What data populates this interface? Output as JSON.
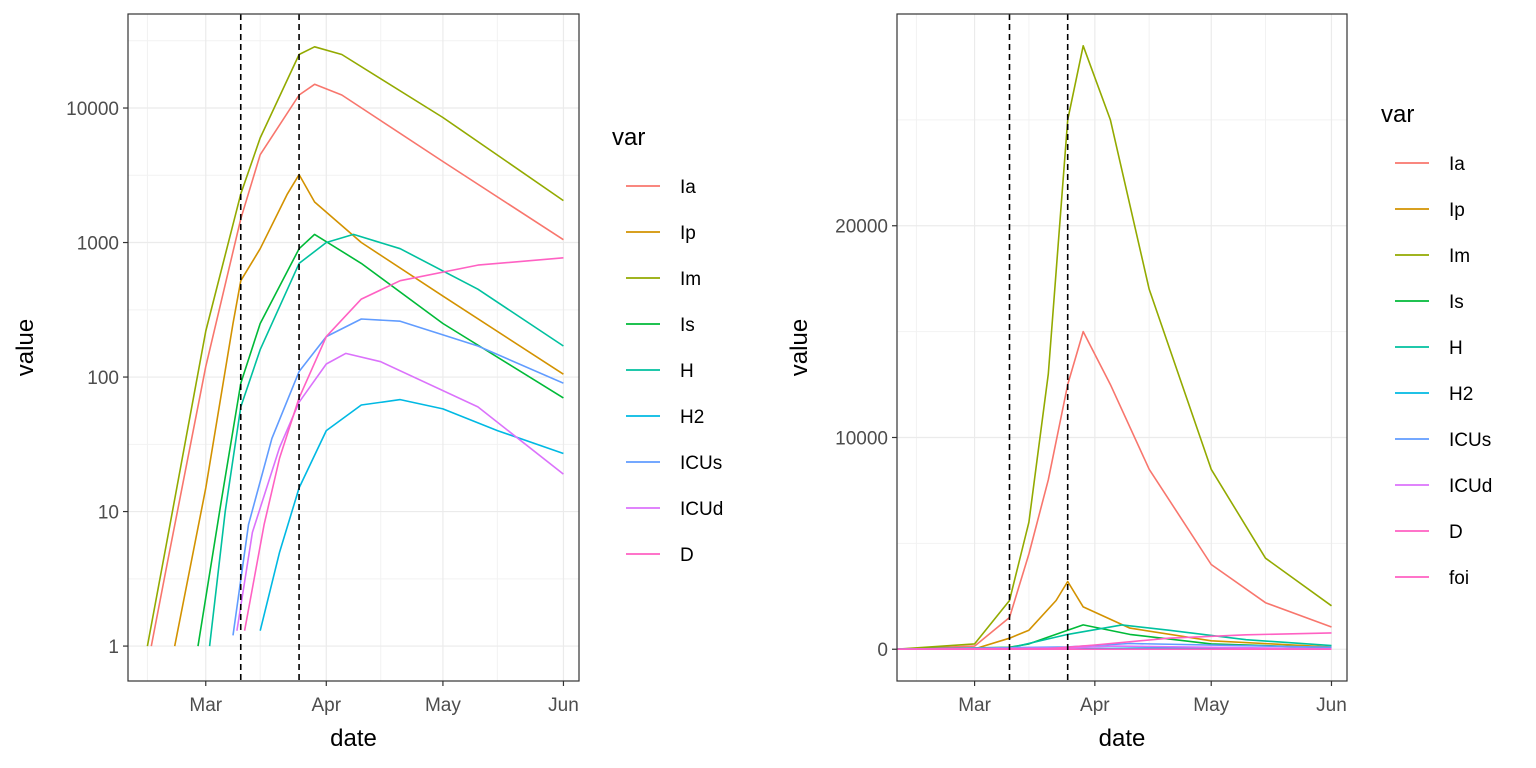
{
  "chart_data": [
    {
      "type": "line",
      "scale": "log10",
      "xlabel": "date",
      "ylabel": "value",
      "x_ticks": [
        "Mar",
        "Apr",
        "May",
        "Jun"
      ],
      "y_ticks": [
        "1",
        "10",
        "100",
        "1000",
        "10000"
      ],
      "x_range": [
        "2020-02-10",
        "2020-06-05"
      ],
      "y_range": [
        0.55,
        50000
      ],
      "grid": true,
      "vlines": [
        "2020-03-10",
        "2020-03-25"
      ],
      "legend": {
        "title": "var",
        "position": "right",
        "entries": [
          "Ia",
          "Ip",
          "Im",
          "Is",
          "H",
          "H2",
          "ICUs",
          "ICUd",
          "D"
        ]
      },
      "series": [
        {
          "name": "Ia",
          "color": "#F8766D",
          "points": [
            [
              "2020-02-16",
              1
            ],
            [
              "2020-02-20",
              4
            ],
            [
              "2020-03-01",
              120
            ],
            [
              "2020-03-10",
              1500
            ],
            [
              "2020-03-15",
              4500
            ],
            [
              "2020-03-25",
              12500
            ],
            [
              "2020-03-29",
              15000
            ],
            [
              "2020-04-05",
              12500
            ],
            [
              "2020-05-01",
              4000
            ],
            [
              "2020-06-01",
              1050
            ]
          ]
        },
        {
          "name": "Ip",
          "color": "#D39200",
          "points": [
            [
              "2020-02-22",
              1
            ],
            [
              "2020-03-01",
              15
            ],
            [
              "2020-03-08",
              250
            ],
            [
              "2020-03-10",
              520
            ],
            [
              "2020-03-15",
              900
            ],
            [
              "2020-03-22",
              2300
            ],
            [
              "2020-03-25",
              3200
            ],
            [
              "2020-03-29",
              2000
            ],
            [
              "2020-04-10",
              1000
            ],
            [
              "2020-05-01",
              400
            ],
            [
              "2020-06-01",
              105
            ]
          ]
        },
        {
          "name": "Im",
          "color": "#93AA00",
          "points": [
            [
              "2020-02-15",
              1
            ],
            [
              "2020-02-20",
              6
            ],
            [
              "2020-03-01",
              220
            ],
            [
              "2020-03-10",
              2300
            ],
            [
              "2020-03-15",
              6000
            ],
            [
              "2020-03-25",
              25000
            ],
            [
              "2020-03-29",
              28500
            ],
            [
              "2020-04-05",
              25000
            ],
            [
              "2020-05-01",
              8500
            ],
            [
              "2020-06-01",
              2050
            ]
          ]
        },
        {
          "name": "Is",
          "color": "#00BA38",
          "points": [
            [
              "2020-02-28",
              1
            ],
            [
              "2020-03-05",
              12
            ],
            [
              "2020-03-10",
              90
            ],
            [
              "2020-03-15",
              250
            ],
            [
              "2020-03-25",
              900
            ],
            [
              "2020-03-29",
              1150
            ],
            [
              "2020-04-10",
              700
            ],
            [
              "2020-05-01",
              250
            ],
            [
              "2020-06-01",
              70
            ]
          ]
        },
        {
          "name": "H",
          "color": "#00C19F",
          "points": [
            [
              "2020-03-02",
              1
            ],
            [
              "2020-03-06",
              10
            ],
            [
              "2020-03-10",
              60
            ],
            [
              "2020-03-15",
              160
            ],
            [
              "2020-03-25",
              700
            ],
            [
              "2020-04-01",
              1000
            ],
            [
              "2020-04-08",
              1150
            ],
            [
              "2020-04-20",
              900
            ],
            [
              "2020-05-10",
              450
            ],
            [
              "2020-06-01",
              170
            ]
          ]
        },
        {
          "name": "H2",
          "color": "#00B9E3",
          "points": [
            [
              "2020-03-15",
              1.3
            ],
            [
              "2020-03-20",
              5
            ],
            [
              "2020-03-25",
              15
            ],
            [
              "2020-04-01",
              40
            ],
            [
              "2020-04-10",
              62
            ],
            [
              "2020-04-20",
              68
            ],
            [
              "2020-05-01",
              58
            ],
            [
              "2020-05-15",
              40
            ],
            [
              "2020-06-01",
              27
            ]
          ]
        },
        {
          "name": "ICUs",
          "color": "#619CFF",
          "points": [
            [
              "2020-03-08",
              1.2
            ],
            [
              "2020-03-12",
              8
            ],
            [
              "2020-03-18",
              35
            ],
            [
              "2020-03-25",
              110
            ],
            [
              "2020-04-01",
              200
            ],
            [
              "2020-04-10",
              270
            ],
            [
              "2020-04-20",
              260
            ],
            [
              "2020-05-10",
              170
            ],
            [
              "2020-06-01",
              90
            ]
          ]
        },
        {
          "name": "ICUd",
          "color": "#DB72FB",
          "points": [
            [
              "2020-03-09",
              1.3
            ],
            [
              "2020-03-13",
              7
            ],
            [
              "2020-03-20",
              30
            ],
            [
              "2020-03-25",
              65
            ],
            [
              "2020-04-01",
              125
            ],
            [
              "2020-04-06",
              150
            ],
            [
              "2020-04-15",
              130
            ],
            [
              "2020-05-10",
              60
            ],
            [
              "2020-06-01",
              19
            ]
          ]
        },
        {
          "name": "D",
          "color": "#FF61C3",
          "points": [
            [
              "2020-03-11",
              1.3
            ],
            [
              "2020-03-16",
              8
            ],
            [
              "2020-03-20",
              25
            ],
            [
              "2020-03-25",
              70
            ],
            [
              "2020-04-01",
              200
            ],
            [
              "2020-04-10",
              380
            ],
            [
              "2020-04-20",
              520
            ],
            [
              "2020-05-10",
              680
            ],
            [
              "2020-06-01",
              770
            ]
          ]
        }
      ]
    },
    {
      "type": "line",
      "scale": "linear",
      "xlabel": "date",
      "ylabel": "value",
      "x_ticks": [
        "Mar",
        "Apr",
        "May",
        "Jun"
      ],
      "y_ticks": [
        "0",
        "10000",
        "20000"
      ],
      "x_range": [
        "2020-02-10",
        "2020-06-05"
      ],
      "y_range": [
        -1500,
        30000
      ],
      "grid": true,
      "vlines": [
        "2020-03-10",
        "2020-03-25"
      ],
      "legend": {
        "title": "var",
        "position": "right",
        "entries": [
          "Ia",
          "Ip",
          "Im",
          "Is",
          "H",
          "H2",
          "ICUs",
          "ICUd",
          "D",
          "foi"
        ]
      },
      "series": [
        {
          "name": "Ia",
          "color": "#F8766D",
          "points": [
            [
              "2020-02-10",
              0
            ],
            [
              "2020-03-01",
              150
            ],
            [
              "2020-03-10",
              1500
            ],
            [
              "2020-03-15",
              4500
            ],
            [
              "2020-03-20",
              8000
            ],
            [
              "2020-03-25",
              12500
            ],
            [
              "2020-03-29",
              15000
            ],
            [
              "2020-04-05",
              12500
            ],
            [
              "2020-04-15",
              8500
            ],
            [
              "2020-05-01",
              4000
            ],
            [
              "2020-05-15",
              2200
            ],
            [
              "2020-06-01",
              1050
            ]
          ]
        },
        {
          "name": "Ip",
          "color": "#D39200",
          "points": [
            [
              "2020-02-10",
              0
            ],
            [
              "2020-03-01",
              15
            ],
            [
              "2020-03-10",
              520
            ],
            [
              "2020-03-15",
              900
            ],
            [
              "2020-03-22",
              2300
            ],
            [
              "2020-03-25",
              3200
            ],
            [
              "2020-03-29",
              2000
            ],
            [
              "2020-04-10",
              1000
            ],
            [
              "2020-05-01",
              400
            ],
            [
              "2020-06-01",
              105
            ]
          ]
        },
        {
          "name": "Im",
          "color": "#93AA00",
          "points": [
            [
              "2020-02-10",
              0
            ],
            [
              "2020-03-01",
              250
            ],
            [
              "2020-03-10",
              2300
            ],
            [
              "2020-03-15",
              6000
            ],
            [
              "2020-03-20",
              13000
            ],
            [
              "2020-03-25",
              25000
            ],
            [
              "2020-03-29",
              28500
            ],
            [
              "2020-04-05",
              25000
            ],
            [
              "2020-04-15",
              17000
            ],
            [
              "2020-05-01",
              8500
            ],
            [
              "2020-05-15",
              4300
            ],
            [
              "2020-06-01",
              2050
            ]
          ]
        },
        {
          "name": "Is",
          "color": "#00BA38",
          "points": [
            [
              "2020-02-10",
              0
            ],
            [
              "2020-03-10",
              90
            ],
            [
              "2020-03-15",
              250
            ],
            [
              "2020-03-25",
              900
            ],
            [
              "2020-03-29",
              1150
            ],
            [
              "2020-04-10",
              700
            ],
            [
              "2020-05-01",
              250
            ],
            [
              "2020-06-01",
              70
            ]
          ]
        },
        {
          "name": "H",
          "color": "#00C19F",
          "points": [
            [
              "2020-02-10",
              0
            ],
            [
              "2020-03-10",
              60
            ],
            [
              "2020-03-25",
              700
            ],
            [
              "2020-04-08",
              1150
            ],
            [
              "2020-04-20",
              900
            ],
            [
              "2020-05-10",
              450
            ],
            [
              "2020-06-01",
              170
            ]
          ]
        },
        {
          "name": "H2",
          "color": "#00B9E3",
          "points": [
            [
              "2020-02-10",
              0
            ],
            [
              "2020-03-25",
              15
            ],
            [
              "2020-04-20",
              68
            ],
            [
              "2020-06-01",
              27
            ]
          ]
        },
        {
          "name": "ICUs",
          "color": "#619CFF",
          "points": [
            [
              "2020-02-10",
              0
            ],
            [
              "2020-03-25",
              110
            ],
            [
              "2020-04-10",
              270
            ],
            [
              "2020-06-01",
              90
            ]
          ]
        },
        {
          "name": "ICUd",
          "color": "#DB72FB",
          "points": [
            [
              "2020-02-10",
              0
            ],
            [
              "2020-03-25",
              65
            ],
            [
              "2020-04-06",
              150
            ],
            [
              "2020-06-01",
              19
            ]
          ]
        },
        {
          "name": "D",
          "color": "#FF61C3",
          "points": [
            [
              "2020-02-10",
              0
            ],
            [
              "2020-03-20",
              25
            ],
            [
              "2020-04-01",
              200
            ],
            [
              "2020-04-20",
              520
            ],
            [
              "2020-05-10",
              680
            ],
            [
              "2020-06-01",
              770
            ]
          ]
        },
        {
          "name": "foi",
          "color": "#FF61C3",
          "points": [
            [
              "2020-02-10",
              0
            ],
            [
              "2020-06-01",
              0
            ]
          ]
        }
      ]
    }
  ]
}
